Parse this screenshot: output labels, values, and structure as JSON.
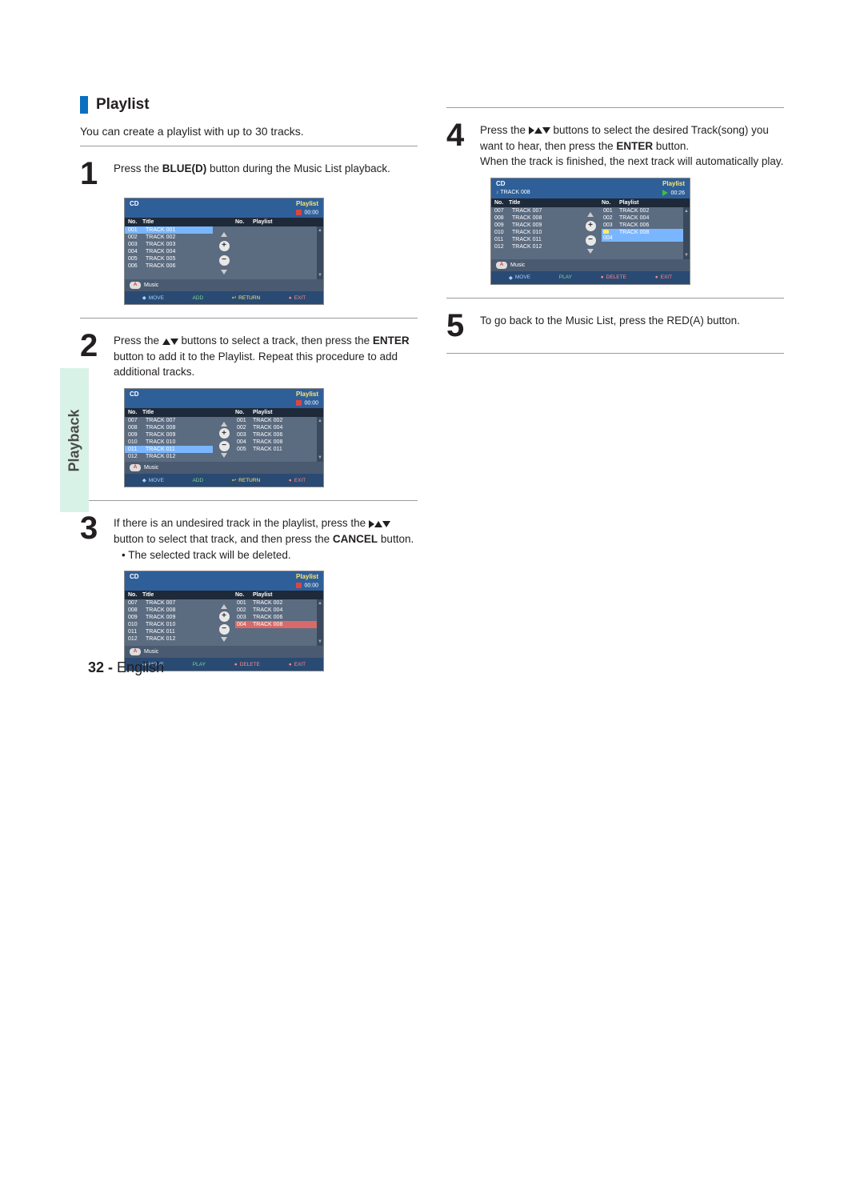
{
  "sideTab": "Playback",
  "sectionTitle": "Playlist",
  "intro": "You can create a playlist with up to 30 tracks.",
  "steps": {
    "s1": {
      "num": "1",
      "prefix": "Press the ",
      "bold1": "BLUE(D)",
      "suffix": " button during the Music List playback."
    },
    "s2": {
      "num": "2",
      "part1": "Press the ",
      "part2": " buttons to select a track, then press the ",
      "bold1": "ENTER",
      "part3": " button to add it to the Playlist. Repeat this procedure to add additional tracks."
    },
    "s3": {
      "num": "3",
      "part1": "If there is an undesired track in the playlist, press the ",
      "part2": " button to select that track, and then press the ",
      "bold1": "CANCEL",
      "part3": " button.",
      "bullet": "• The selected track will be deleted."
    },
    "s4": {
      "num": "4",
      "part1": "Press the ",
      "part2": " buttons to select the desired Track(song) you want to hear, then press the ",
      "bold1": "ENTER",
      "part3": " button.",
      "line2": "When the track is finished, the next track will automatically play."
    },
    "s5": {
      "num": "5",
      "text": "To go back to the Music List, press the RED(A) button."
    }
  },
  "screenshot": {
    "titleLeft": "CD",
    "titleRight": "Playlist",
    "timeZero": "00:00",
    "timePlay": "00:26",
    "headers": {
      "no": "No.",
      "title": "Title",
      "no2": "No.",
      "playlist": "Playlist"
    },
    "footerMusic": "Music",
    "footerButton": "A",
    "hints": {
      "move": "MOVE",
      "add": "ADD",
      "play": "PLAY",
      "ret": "RETURN",
      "delete": "DELETE",
      "exit": "EXIT"
    },
    "addSymbol": "+",
    "removeSymbol": "−",
    "scrollUp": "▲",
    "scrollDown": "▼"
  },
  "sc1": {
    "nowPlaying": "",
    "leftTracks": [
      {
        "no": "001",
        "title": "TRACK 001",
        "sel": true
      },
      {
        "no": "002",
        "title": "TRACK 002"
      },
      {
        "no": "003",
        "title": "TRACK 003"
      },
      {
        "no": "004",
        "title": "TRACK 004"
      },
      {
        "no": "005",
        "title": "TRACK 005"
      },
      {
        "no": "006",
        "title": "TRACK 006"
      }
    ],
    "playlistTracks": []
  },
  "sc2": {
    "leftTracks": [
      {
        "no": "007",
        "title": "TRACK 007"
      },
      {
        "no": "008",
        "title": "TRACK 008"
      },
      {
        "no": "009",
        "title": "TRACK 009"
      },
      {
        "no": "010",
        "title": "TRACK 010"
      },
      {
        "no": "011",
        "title": "TRACK 011",
        "sel": true
      },
      {
        "no": "012",
        "title": "TRACK 012"
      }
    ],
    "playlistTracks": [
      {
        "no": "001",
        "title": "TRACK 002"
      },
      {
        "no": "002",
        "title": "TRACK 004"
      },
      {
        "no": "003",
        "title": "TRACK 006"
      },
      {
        "no": "004",
        "title": "TRACK 008"
      },
      {
        "no": "005",
        "title": "TRACK 011"
      }
    ]
  },
  "sc3": {
    "leftTracks": [
      {
        "no": "007",
        "title": "TRACK 007"
      },
      {
        "no": "008",
        "title": "TRACK 008"
      },
      {
        "no": "009",
        "title": "TRACK 009"
      },
      {
        "no": "010",
        "title": "TRACK 010"
      },
      {
        "no": "011",
        "title": "TRACK 011"
      },
      {
        "no": "012",
        "title": "TRACK 012"
      }
    ],
    "playlistTracks": [
      {
        "no": "001",
        "title": "TRACK 002"
      },
      {
        "no": "002",
        "title": "TRACK 004"
      },
      {
        "no": "003",
        "title": "TRACK 006"
      },
      {
        "no": "004",
        "title": "TRACK 008",
        "selRed": true
      }
    ]
  },
  "sc4": {
    "nowPlaying": "TRACK 008",
    "leftTracks": [
      {
        "no": "007",
        "title": "TRACK 007"
      },
      {
        "no": "008",
        "title": "TRACK 008"
      },
      {
        "no": "009",
        "title": "TRACK 009"
      },
      {
        "no": "010",
        "title": "TRACK 010"
      },
      {
        "no": "011",
        "title": "TRACK 011"
      },
      {
        "no": "012",
        "title": "TRACK 012"
      }
    ],
    "playlistTracks": [
      {
        "no": "001",
        "title": "TRACK 002"
      },
      {
        "no": "002",
        "title": "TRACK 004"
      },
      {
        "no": "003",
        "title": "TRACK 006"
      },
      {
        "no": "004",
        "title": "TRACK 008",
        "selBlue": true,
        "playing": true
      }
    ]
  },
  "pageFooter": {
    "num": "32 -",
    "lang": "English"
  }
}
